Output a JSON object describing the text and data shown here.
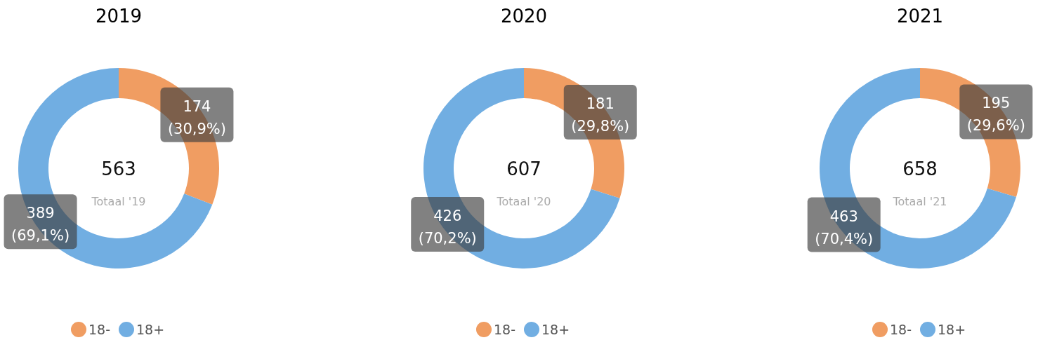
{
  "chart_data": [
    {
      "type": "donut",
      "title": "2019",
      "categories": [
        "18-",
        "18+"
      ],
      "values": [
        174,
        389
      ],
      "colors": [
        "#f09d62",
        "#71aee2"
      ],
      "value_labels": [
        "174\n(30,9%)",
        "389\n(69,1%)"
      ],
      "annotations": [
        "563",
        "Totaal '19"
      ],
      "legend": "bottom"
    },
    {
      "type": "donut",
      "title": "2020",
      "categories": [
        "18-",
        "18+"
      ],
      "values": [
        181,
        426
      ],
      "colors": [
        "#f09d62",
        "#71aee2"
      ],
      "value_labels": [
        "181\n(29,8%)",
        "426\n(70,2%)"
      ],
      "annotations": [
        "607",
        "Totaal '20"
      ],
      "legend": "bottom"
    },
    {
      "type": "donut",
      "title": "2021",
      "categories": [
        "18-",
        "18+"
      ],
      "values": [
        195,
        463
      ],
      "colors": [
        "#f09d62",
        "#71aee2"
      ],
      "value_labels": [
        "195\n(29,6%)",
        "463\n(70,4%)"
      ],
      "annotations": [
        "658",
        "Totaal '21"
      ],
      "legend": "bottom"
    }
  ]
}
